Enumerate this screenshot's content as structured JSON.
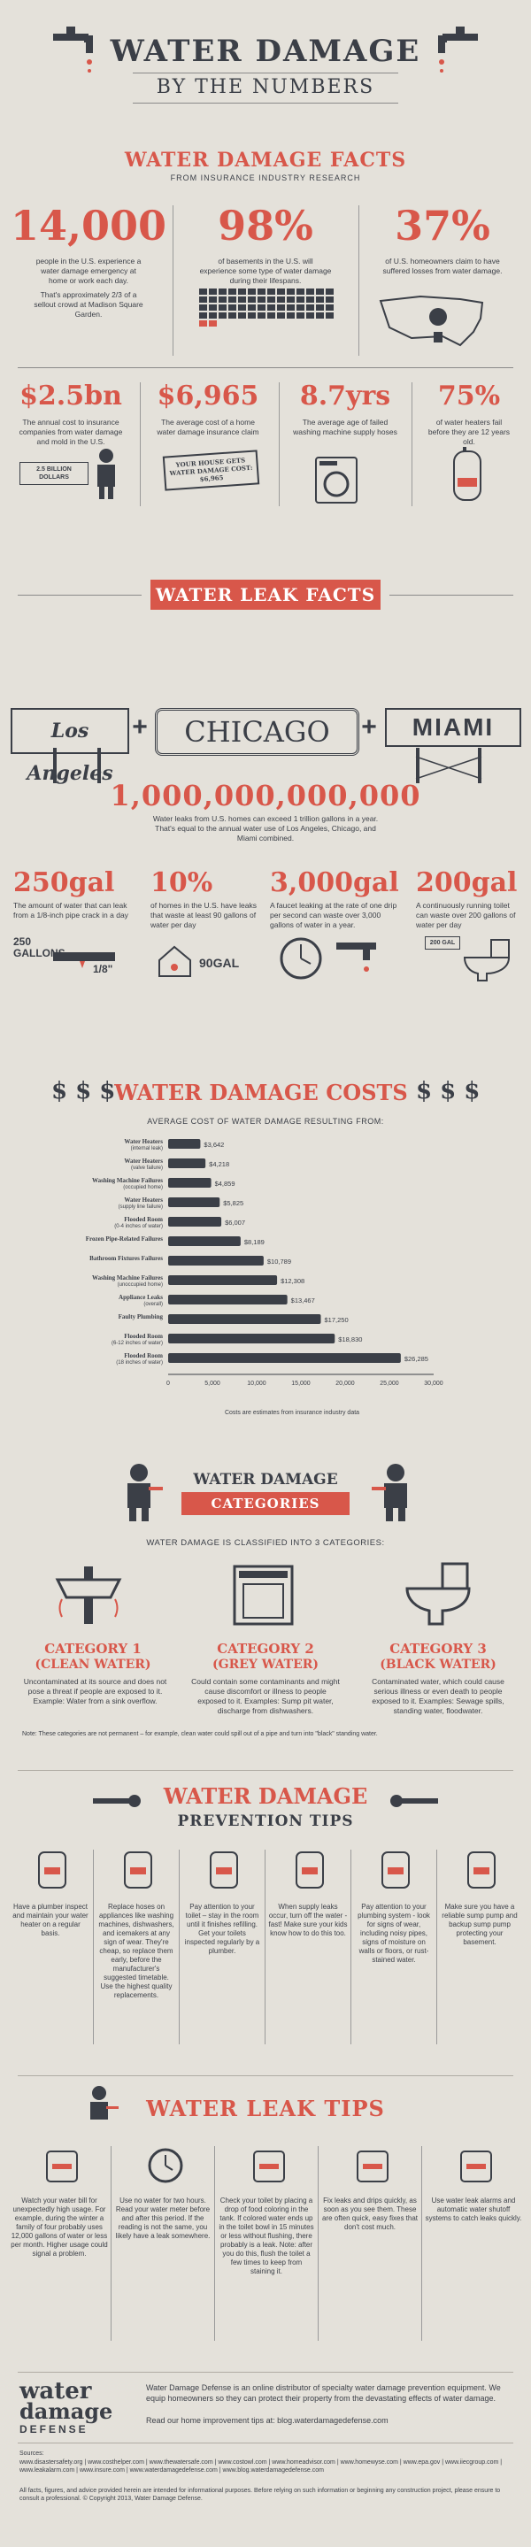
{
  "header": {
    "title": "WATER DAMAGE",
    "subtitle": "BY THE NUMBERS"
  },
  "facts": {
    "title": "WATER DAMAGE FACTS",
    "subtitle": "FROM INSURANCE INDUSTRY RESEARCH",
    "row1": [
      {
        "value": "14,000",
        "text": "people in the U.S. experience a water damage emergency at home or work each day.",
        "extra": "That's approximately 2/3 of a sellout crowd at Madison Square Garden."
      },
      {
        "value": "98%",
        "text": "of basements in the U.S. will experience some type of water damage during their lifespans."
      },
      {
        "value": "37%",
        "text": "of U.S. homeowners claim to have suffered losses from water damage."
      }
    ],
    "row2": [
      {
        "value": "$2.5bn",
        "text": "The annual cost to insurance companies from water damage and mold in the U.S.",
        "sign": "2.5 BILLION DOLLARS"
      },
      {
        "value": "$6,965",
        "text": "The average cost of a home water damage insurance claim",
        "sign": "YOUR HOUSE GETS WATER DAMAGE COST: $6,965"
      },
      {
        "value": "8.7yrs",
        "text": "The average age of failed washing machine supply hoses"
      },
      {
        "value": "75%",
        "text": "of water heaters fail before they are 12 years old."
      }
    ]
  },
  "leak_facts": {
    "title": "WATER LEAK FACTS",
    "cities": [
      "Los Angeles",
      "CHICAGO",
      "MIAMI"
    ],
    "plus": "+",
    "big_number": "1,000,000,000,000",
    "big_text": "Water leaks from U.S. homes can exceed 1 trillion gallons in a year. That's equal to the annual water use of Los Angeles, Chicago, and Miami combined.",
    "stats": [
      {
        "value": "250gal",
        "text": "The amount of water that can leak from a 1/8-inch pipe crack in a day",
        "label": "250 GALLONS",
        "extra": "1/8\""
      },
      {
        "value": "10%",
        "text": "of homes in the U.S. have leaks that waste at least 90 gallons of water per day",
        "label": "90GAL"
      },
      {
        "value": "3,000gal",
        "text": "A faucet leaking at the rate of one drip per second can waste over 3,000 gallons of water in a year."
      },
      {
        "value": "200gal",
        "text": "A continuously running toilet can waste over 200 gallons of water per day",
        "label": "200 GAL"
      }
    ]
  },
  "costs": {
    "title": "WATER DAMAGE COSTS",
    "dollars": "$ $ $",
    "subtitle": "AVERAGE COST OF WATER DAMAGE RESULTING FROM:",
    "footnote": "Costs are estimates from insurance industry data"
  },
  "chart_data": {
    "type": "bar",
    "orientation": "horizontal",
    "categories": [
      "Water Heaters (internal leak)",
      "Water Heaters (valve failure)",
      "Washing Machine Failures (occupied home)",
      "Water Heaters (supply line failure)",
      "Flooded Room (0-4 inches of water)",
      "Frozen Pipe-Related Failures",
      "Bathroom Fixtures Failures",
      "Washing Machine Failures (unoccupied home)",
      "Appliance Leaks (overall)",
      "Faulty Plumbing",
      "Flooded Room (6-12 inches of water)",
      "Flooded Room (18 inches of water)"
    ],
    "labels": [
      "$3,642",
      "$4,218",
      "$4,859",
      "$5,825",
      "$6,007",
      "$8,189",
      "$10,789",
      "$12,308",
      "$13,467",
      "$17,250",
      "$18,830",
      "$26,285"
    ],
    "values": [
      3642,
      4218,
      4859,
      5825,
      6007,
      8189,
      10789,
      12308,
      13467,
      17250,
      18830,
      26285
    ],
    "xticks": [
      "0",
      "5,000",
      "10,000",
      "15,000",
      "20,000",
      "25,000",
      "30,000"
    ],
    "xlim": [
      0,
      30000
    ]
  },
  "categories": {
    "title": "WATER DAMAGE",
    "title2": "CATEGORIES",
    "intro": "WATER DAMAGE IS CLASSIFIED INTO 3 CATEGORIES:",
    "items": [
      {
        "name": "CATEGORY 1",
        "sub": "(CLEAN WATER)",
        "text": "Uncontaminated at its source and does not pose a threat if people are exposed to it. Example: Water from a sink overflow."
      },
      {
        "name": "CATEGORY 2",
        "sub": "(GREY WATER)",
        "text": "Could contain some contaminants and might cause discomfort or illness to people exposed to it. Examples: Sump pit water, discharge from dishwashers."
      },
      {
        "name": "CATEGORY 3",
        "sub": "(BLACK WATER)",
        "text": "Contaminated water, which could cause serious illness or even death to people exposed to it. Examples: Sewage spills, standing water, floodwater."
      }
    ],
    "note": "Note: These categories are not permanent – for example, clean water could spill out of a pipe and turn into \"black\" standing water."
  },
  "prevention": {
    "title": "WATER DAMAGE",
    "title2": "PREVENTION TIPS",
    "tips": [
      "Have a plumber inspect and maintain your water heater on a regular basis.",
      "Replace hoses on appliances like washing machines, dishwashers, and icemakers at any sign of wear. They're cheap, so replace them early, before the manufacturer's suggested timetable. Use the highest quality replacements.",
      "Pay attention to your toilet – stay in the room until it finishes refilling. Get your toilets inspected regularly by a plumber.",
      "When supply leaks occur, turn off the water - fast! Make sure your kids know how to do this too.",
      "Pay attention to your plumbing system - look for signs of wear, including noisy pipes, signs of moisture on walls or floors, or rust-stained water.",
      "Make sure you have a reliable sump pump and backup sump pump protecting your basement."
    ]
  },
  "leak_tips": {
    "title": "WATER LEAK TIPS",
    "tips": [
      "Watch your water bill for unexpectedly high usage. For example, during the winter a family of four probably uses 12,000 gallons of water or less per month. Higher usage could signal a problem.",
      "Use no water for two hours. Read your water meter before and after this period. If the reading is not the same, you likely have a leak somewhere.",
      "Check your toilet by placing a drop of food coloring in the tank. If colored water ends up in the toilet bowl in 15 minutes or less without flushing, there probably is a leak. Note: after you do this, flush the toilet a few times to keep from staining it.",
      "Fix leaks and drips quickly, as soon as you see them. These are often quick, easy fixes that don't cost much.",
      "Use water leak alarms and automatic water shutoff systems to catch leaks quickly."
    ]
  },
  "footer": {
    "logo1": "water",
    "logo2": "damage",
    "logo3": "DEFENSE",
    "about": "Water Damage Defense is an online distributor of specialty water damage prevention equipment. We equip homeowners so they can protect their property from the devastating effects of water damage.",
    "more": "Read our home improvement tips at: blog.waterdamagedefense.com",
    "sources_label": "Sources:",
    "sources": "www.disastersafety.org | www.costhelper.com | www.thewatersafe.com | www.costowl.com | www.homeadvisor.com | www.homewyse.com | www.epa.gov | www.iiecgroup.com | www.leakalarm.com | www.insure.com | www.waterdamagedefense.com | www.blog.waterdamagedefense.com",
    "disclaimer": "All facts, figures, and advice provided herein are intended for informational purposes. Before relying on such information or beginning any construction project, please ensure to consult a professional. © Copyright 2013, Water Damage Defense."
  }
}
